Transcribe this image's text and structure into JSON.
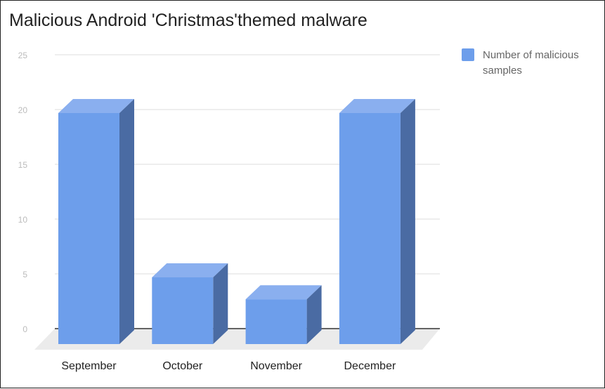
{
  "chart_data": {
    "type": "bar",
    "title": "Malicious Android 'Christmas'themed  malware",
    "categories": [
      "September",
      "October",
      "November",
      "December"
    ],
    "series": [
      {
        "name": "Number of malicious samples",
        "values": [
          20,
          5,
          3,
          20
        ]
      }
    ],
    "yticks": [
      "0",
      "5",
      "10",
      "15",
      "20",
      "25"
    ],
    "ylim": [
      0,
      25
    ],
    "xlabel": "",
    "ylabel": "",
    "grid": true,
    "legend": "top-right",
    "colors": {
      "front": "#6d9eeb",
      "top": "#8aafef",
      "side": "#4a6ba3",
      "floor": "#ebebeb"
    }
  }
}
